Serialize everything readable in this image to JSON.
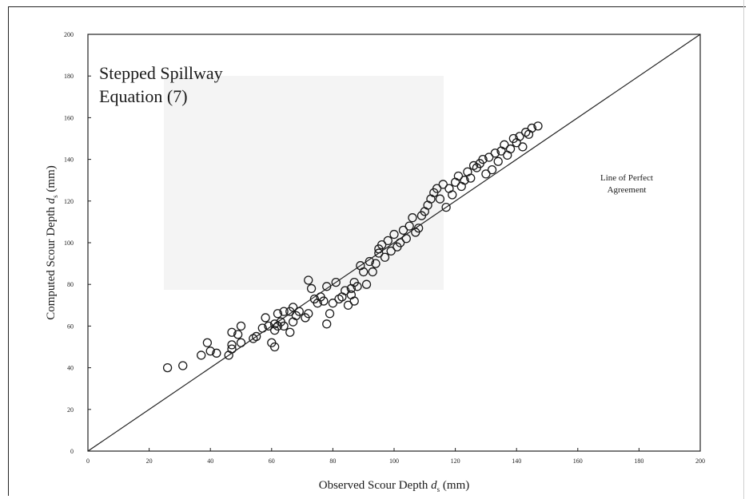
{
  "chart_data": {
    "type": "scatter",
    "title_lines": [
      "Stepped Spillway",
      "Equation (7)"
    ],
    "xlabel": "Observed Scour Depth d_s (mm)",
    "ylabel": "Computed Scour Depth d_s (mm)",
    "label_symbol": "d",
    "label_subscript": "s",
    "xlabel_prefix": "Observed Scour Depth ",
    "xlabel_suffix": " (mm)",
    "ylabel_prefix": "Computed Scour Depth ",
    "ylabel_suffix": " (mm)",
    "xlim": [
      0,
      200
    ],
    "ylim": [
      0,
      200
    ],
    "x_ticks": [
      "0",
      "20",
      "40",
      "60",
      "80",
      "100",
      "120",
      "140",
      "160",
      "180",
      "200"
    ],
    "y_ticks": [
      "0",
      "20",
      "40",
      "60",
      "80",
      "100",
      "120",
      "140",
      "160",
      "180",
      "200"
    ],
    "grid": false,
    "annotation_lines": [
      "Line of Perfect",
      "Agreement"
    ],
    "reference_line": {
      "name": "Line of Perfect Agreement",
      "points": [
        [
          0,
          0
        ],
        [
          200,
          200
        ]
      ]
    },
    "points": [
      [
        26,
        40
      ],
      [
        31,
        41
      ],
      [
        37,
        46
      ],
      [
        39,
        52
      ],
      [
        40,
        48
      ],
      [
        42,
        47
      ],
      [
        46,
        46
      ],
      [
        47,
        49
      ],
      [
        47,
        51
      ],
      [
        47,
        57
      ],
      [
        49,
        56
      ],
      [
        50,
        52
      ],
      [
        50,
        60
      ],
      [
        54,
        54
      ],
      [
        55,
        55
      ],
      [
        57,
        59
      ],
      [
        58,
        64
      ],
      [
        59,
        60
      ],
      [
        60,
        52
      ],
      [
        61,
        50
      ],
      [
        61,
        58
      ],
      [
        61,
        61
      ],
      [
        62,
        60
      ],
      [
        62,
        66
      ],
      [
        63,
        62
      ],
      [
        64,
        67
      ],
      [
        64,
        60
      ],
      [
        66,
        57
      ],
      [
        66,
        67
      ],
      [
        67,
        62
      ],
      [
        67,
        69
      ],
      [
        68,
        65
      ],
      [
        69,
        67
      ],
      [
        71,
        64
      ],
      [
        72,
        66
      ],
      [
        72,
        82
      ],
      [
        73,
        78
      ],
      [
        74,
        73
      ],
      [
        75,
        71
      ],
      [
        76,
        74
      ],
      [
        77,
        72
      ],
      [
        78,
        61
      ],
      [
        78,
        79
      ],
      [
        79,
        66
      ],
      [
        80,
        71
      ],
      [
        81,
        81
      ],
      [
        82,
        73
      ],
      [
        83,
        74
      ],
      [
        84,
        77
      ],
      [
        85,
        70
      ],
      [
        86,
        75
      ],
      [
        86,
        78
      ],
      [
        87,
        72
      ],
      [
        87,
        81
      ],
      [
        88,
        79
      ],
      [
        89,
        89
      ],
      [
        90,
        86
      ],
      [
        91,
        80
      ],
      [
        92,
        91
      ],
      [
        93,
        86
      ],
      [
        94,
        90
      ],
      [
        95,
        95
      ],
      [
        95,
        97
      ],
      [
        96,
        99
      ],
      [
        97,
        93
      ],
      [
        98,
        101
      ],
      [
        99,
        96
      ],
      [
        100,
        104
      ],
      [
        101,
        98
      ],
      [
        102,
        100
      ],
      [
        103,
        106
      ],
      [
        104,
        102
      ],
      [
        105,
        108
      ],
      [
        106,
        112
      ],
      [
        107,
        105
      ],
      [
        108,
        107
      ],
      [
        109,
        113
      ],
      [
        110,
        115
      ],
      [
        111,
        118
      ],
      [
        112,
        121
      ],
      [
        113,
        124
      ],
      [
        114,
        126
      ],
      [
        115,
        121
      ],
      [
        116,
        128
      ],
      [
        117,
        117
      ],
      [
        118,
        126
      ],
      [
        119,
        123
      ],
      [
        120,
        129
      ],
      [
        121,
        132
      ],
      [
        122,
        127
      ],
      [
        123,
        130
      ],
      [
        124,
        134
      ],
      [
        125,
        131
      ],
      [
        126,
        137
      ],
      [
        127,
        136
      ],
      [
        128,
        138
      ],
      [
        129,
        140
      ],
      [
        130,
        133
      ],
      [
        131,
        141
      ],
      [
        132,
        135
      ],
      [
        133,
        143
      ],
      [
        134,
        139
      ],
      [
        135,
        144
      ],
      [
        136,
        147
      ],
      [
        137,
        142
      ],
      [
        138,
        145
      ],
      [
        139,
        150
      ],
      [
        140,
        148
      ],
      [
        141,
        151
      ],
      [
        142,
        146
      ],
      [
        143,
        153
      ],
      [
        144,
        152
      ],
      [
        145,
        155
      ],
      [
        147,
        156
      ]
    ]
  }
}
